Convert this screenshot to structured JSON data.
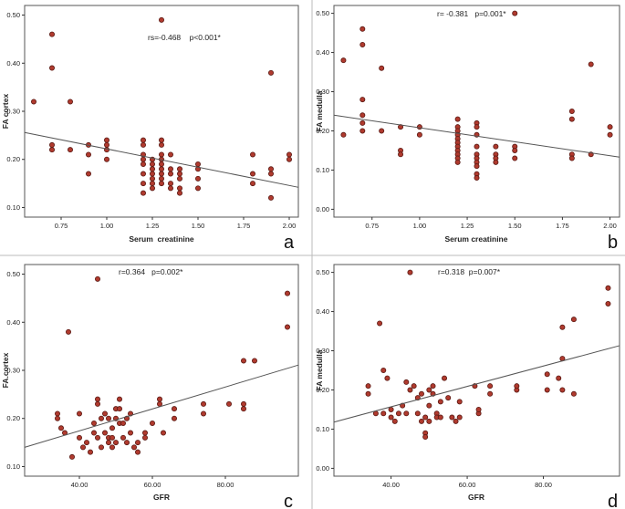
{
  "chart_data": [
    {
      "type": "scatter",
      "panel_label": "a",
      "xlabel": "Serum  creatinine",
      "ylabel": "FA cortex",
      "annotation": "rs=-0.468    p<0.001*",
      "xlim": [
        0.55,
        2.05
      ],
      "ylim": [
        0.08,
        0.52
      ],
      "xticks": [
        0.75,
        1.0,
        1.25,
        1.5,
        1.75,
        2.0
      ],
      "xtick_labels": [
        "0.75",
        "1.00",
        "1.25",
        "1.50",
        "1.75",
        "2.00"
      ],
      "yticks": [
        0.1,
        0.2,
        0.3,
        0.4,
        0.5
      ],
      "ytick_labels": [
        "0.10",
        "0.20",
        "0.30",
        "0.40",
        "0.50"
      ],
      "fit_line": {
        "x": [
          0.55,
          2.05
        ],
        "y": [
          0.256,
          0.142
        ]
      },
      "points": {
        "x": [
          0.6,
          0.7,
          0.7,
          0.7,
          0.7,
          0.8,
          0.8,
          0.9,
          0.9,
          0.9,
          1.0,
          1.0,
          1.0,
          1.0,
          1.2,
          1.2,
          1.2,
          1.2,
          1.2,
          1.2,
          1.2,
          1.2,
          1.25,
          1.25,
          1.25,
          1.25,
          1.25,
          1.25,
          1.25,
          1.3,
          1.3,
          1.3,
          1.3,
          1.3,
          1.3,
          1.3,
          1.3,
          1.3,
          1.3,
          1.35,
          1.35,
          1.35,
          1.35,
          1.35,
          1.4,
          1.4,
          1.4,
          1.4,
          1.4,
          1.5,
          1.5,
          1.5,
          1.5,
          1.8,
          1.8,
          1.8,
          1.9,
          1.9,
          1.9,
          1.9,
          2.0,
          2.0
        ],
        "y": [
          0.32,
          0.46,
          0.39,
          0.23,
          0.22,
          0.32,
          0.22,
          0.23,
          0.21,
          0.17,
          0.24,
          0.23,
          0.22,
          0.2,
          0.24,
          0.23,
          0.21,
          0.2,
          0.19,
          0.17,
          0.15,
          0.13,
          0.2,
          0.19,
          0.18,
          0.17,
          0.16,
          0.15,
          0.14,
          0.49,
          0.24,
          0.23,
          0.21,
          0.2,
          0.19,
          0.18,
          0.17,
          0.16,
          0.15,
          0.21,
          0.18,
          0.17,
          0.15,
          0.14,
          0.18,
          0.17,
          0.16,
          0.14,
          0.13,
          0.19,
          0.18,
          0.16,
          0.14,
          0.21,
          0.17,
          0.15,
          0.38,
          0.18,
          0.17,
          0.12,
          0.21,
          0.2
        ]
      }
    },
    {
      "type": "scatter",
      "panel_label": "b",
      "xlabel": "Serum creatinine",
      "ylabel": "FA medulla",
      "annotation": "r= -0.381   p=0.001*",
      "xlim": [
        0.55,
        2.05
      ],
      "ylim": [
        -0.02,
        0.52
      ],
      "xticks": [
        0.75,
        1.0,
        1.25,
        1.5,
        1.75,
        2.0
      ],
      "xtick_labels": [
        "0.75",
        "1.00",
        "1.25",
        "1.50",
        "1.75",
        "2.00"
      ],
      "yticks": [
        0.0,
        0.1,
        0.2,
        0.3,
        0.4,
        0.5
      ],
      "ytick_labels": [
        "0.00",
        "0.10",
        "0.20",
        "0.30",
        "0.40",
        "0.50"
      ],
      "fit_line": {
        "x": [
          0.55,
          2.05
        ],
        "y": [
          0.24,
          0.133
        ]
      },
      "points": {
        "x": [
          0.6,
          0.6,
          0.7,
          0.7,
          0.7,
          0.7,
          0.7,
          0.7,
          0.8,
          0.8,
          0.9,
          0.9,
          0.9,
          1.0,
          1.0,
          1.2,
          1.2,
          1.2,
          1.2,
          1.2,
          1.2,
          1.2,
          1.2,
          1.2,
          1.2,
          1.2,
          1.3,
          1.3,
          1.3,
          1.3,
          1.3,
          1.3,
          1.3,
          1.3,
          1.3,
          1.3,
          1.4,
          1.4,
          1.4,
          1.4,
          1.5,
          1.5,
          1.5,
          1.5,
          1.8,
          1.8,
          1.8,
          1.8,
          1.9,
          1.9,
          2.0,
          2.0
        ],
        "y": [
          0.38,
          0.19,
          0.46,
          0.42,
          0.28,
          0.24,
          0.22,
          0.2,
          0.36,
          0.2,
          0.21,
          0.15,
          0.14,
          0.21,
          0.19,
          0.23,
          0.21,
          0.2,
          0.19,
          0.18,
          0.17,
          0.16,
          0.15,
          0.14,
          0.13,
          0.12,
          0.22,
          0.21,
          0.19,
          0.16,
          0.14,
          0.13,
          0.12,
          0.11,
          0.09,
          0.08,
          0.16,
          0.14,
          0.13,
          0.12,
          0.5,
          0.16,
          0.15,
          0.13,
          0.25,
          0.23,
          0.14,
          0.13,
          0.37,
          0.14,
          0.21,
          0.19
        ]
      }
    },
    {
      "type": "scatter",
      "panel_label": "c",
      "xlabel": "GFR",
      "ylabel": "FA.cortex",
      "annotation": "r=0.364   p=0.002*",
      "xlim": [
        25,
        100
      ],
      "ylim": [
        0.08,
        0.52
      ],
      "xticks": [
        40,
        60,
        80
      ],
      "xtick_labels": [
        "40.00",
        "60.00",
        "80.00"
      ],
      "yticks": [
        0.1,
        0.2,
        0.3,
        0.4,
        0.5
      ],
      "ytick_labels": [
        "0.10",
        "0.20",
        "0.30",
        "0.40",
        "0.50"
      ],
      "fit_line": {
        "x": [
          25,
          100
        ],
        "y": [
          0.14,
          0.311
        ]
      },
      "points": {
        "x": [
          34,
          34,
          35,
          36,
          37,
          38,
          40,
          40,
          41,
          42,
          43,
          44,
          44,
          45,
          45,
          45,
          45,
          46,
          46,
          47,
          47,
          48,
          48,
          48,
          49,
          49,
          49,
          50,
          50,
          50,
          51,
          51,
          51,
          52,
          52,
          53,
          53,
          54,
          54,
          55,
          56,
          56,
          58,
          58,
          60,
          62,
          62,
          63,
          66,
          66,
          74,
          74,
          81,
          85,
          85,
          85,
          88,
          97,
          97
        ],
        "y": [
          0.21,
          0.2,
          0.18,
          0.17,
          0.38,
          0.12,
          0.21,
          0.16,
          0.14,
          0.15,
          0.13,
          0.17,
          0.19,
          0.49,
          0.24,
          0.23,
          0.16,
          0.2,
          0.14,
          0.21,
          0.17,
          0.2,
          0.16,
          0.15,
          0.18,
          0.16,
          0.14,
          0.22,
          0.2,
          0.15,
          0.24,
          0.22,
          0.19,
          0.19,
          0.16,
          0.2,
          0.15,
          0.21,
          0.17,
          0.14,
          0.15,
          0.13,
          0.17,
          0.16,
          0.19,
          0.24,
          0.23,
          0.17,
          0.22,
          0.2,
          0.23,
          0.21,
          0.23,
          0.32,
          0.23,
          0.22,
          0.32,
          0.46,
          0.39
        ]
      }
    },
    {
      "type": "scatter",
      "panel_label": "d",
      "xlabel": "GFR",
      "ylabel": "FA medulla",
      "annotation": "r=0.318  p=0.007*",
      "xlim": [
        25,
        100
      ],
      "ylim": [
        -0.02,
        0.52
      ],
      "xticks": [
        40,
        60,
        80
      ],
      "xtick_labels": [
        "40.00",
        "60.00",
        "80.00"
      ],
      "yticks": [
        0.0,
        0.1,
        0.2,
        0.3,
        0.4,
        0.5
      ],
      "ytick_labels": [
        "0.00",
        "0.10",
        "0.20",
        "0.30",
        "0.40",
        "0.50"
      ],
      "fit_line": {
        "x": [
          25,
          100
        ],
        "y": [
          0.118,
          0.313
        ]
      },
      "points": {
        "x": [
          34,
          34,
          36,
          37,
          38,
          38,
          39,
          40,
          40,
          41,
          42,
          43,
          44,
          44,
          45,
          45,
          46,
          47,
          47,
          48,
          48,
          49,
          49,
          49,
          50,
          50,
          50,
          51,
          51,
          52,
          52,
          53,
          53,
          54,
          55,
          56,
          57,
          58,
          58,
          62,
          63,
          63,
          66,
          66,
          73,
          73,
          81,
          81,
          84,
          85,
          85,
          85,
          88,
          88,
          97,
          97
        ],
        "y": [
          0.21,
          0.19,
          0.14,
          0.37,
          0.14,
          0.25,
          0.23,
          0.15,
          0.13,
          0.12,
          0.14,
          0.16,
          0.22,
          0.14,
          0.5,
          0.2,
          0.21,
          0.18,
          0.14,
          0.19,
          0.12,
          0.13,
          0.09,
          0.08,
          0.16,
          0.2,
          0.12,
          0.21,
          0.19,
          0.14,
          0.13,
          0.17,
          0.13,
          0.23,
          0.18,
          0.13,
          0.12,
          0.17,
          0.13,
          0.21,
          0.14,
          0.15,
          0.21,
          0.19,
          0.2,
          0.21,
          0.24,
          0.2,
          0.23,
          0.36,
          0.28,
          0.2,
          0.38,
          0.19,
          0.46,
          0.42
        ]
      }
    }
  ],
  "colors": {
    "point_fill": "#b03a2e",
    "point_stroke": "#5a1a14",
    "fit_line": "#555555",
    "frame": "#555555"
  }
}
